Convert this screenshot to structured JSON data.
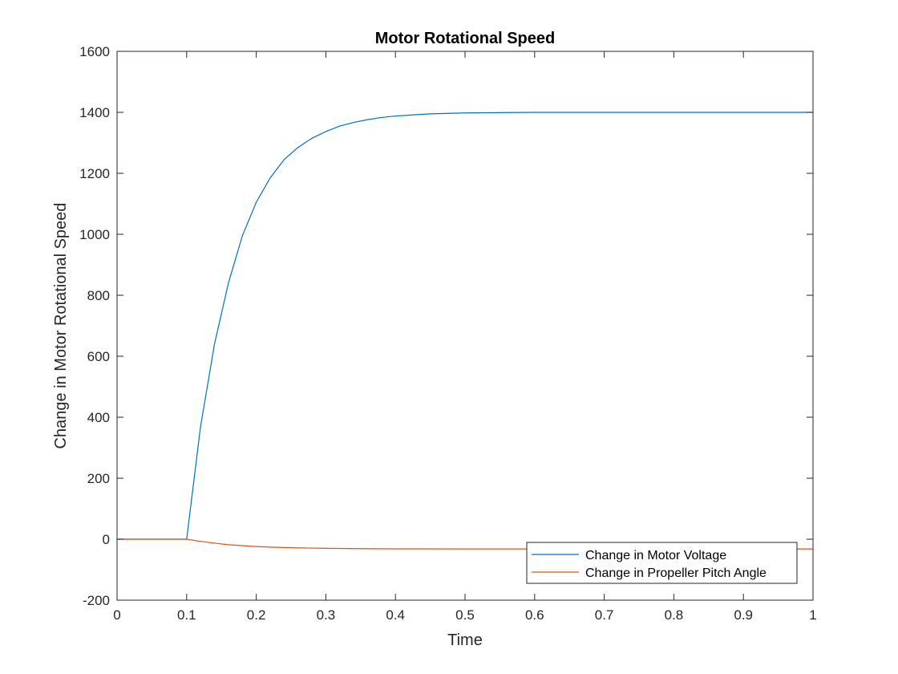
{
  "chart_data": {
    "type": "line",
    "title": "Motor Rotational Speed",
    "xlabel": "Time",
    "ylabel": "Change in Motor Rotational Speed",
    "xlim": [
      0,
      1
    ],
    "ylim": [
      -200,
      1600
    ],
    "xticks": [
      0,
      0.1,
      0.2,
      0.3,
      0.4,
      0.5,
      0.6,
      0.7,
      0.8,
      0.9,
      1
    ],
    "xtick_labels": [
      "0",
      "0.1",
      "0.2",
      "0.3",
      "0.4",
      "0.5",
      "0.6",
      "0.7",
      "0.8",
      "0.9",
      "1"
    ],
    "yticks": [
      -200,
      0,
      200,
      400,
      600,
      800,
      1000,
      1200,
      1400,
      1600
    ],
    "ytick_labels": [
      "-200",
      "0",
      "200",
      "400",
      "600",
      "800",
      "1000",
      "1200",
      "1400",
      "1600"
    ],
    "grid": false,
    "legend_position": "bottom-right",
    "series": [
      {
        "name": "Change in Motor Voltage",
        "color": "#0072BD",
        "x": [
          0,
          0.1,
          0.12,
          0.14,
          0.16,
          0.18,
          0.2,
          0.22,
          0.24,
          0.26,
          0.28,
          0.3,
          0.32,
          0.34,
          0.36,
          0.38,
          0.4,
          0.45,
          0.5,
          0.6,
          0.7,
          0.8,
          0.9,
          1.0
        ],
        "y": [
          0,
          0,
          370,
          640,
          840,
          995,
          1105,
          1185,
          1245,
          1285,
          1315,
          1337,
          1355,
          1367,
          1376,
          1383,
          1388,
          1395,
          1398,
          1400,
          1400,
          1400,
          1400,
          1400
        ]
      },
      {
        "name": "Change in Propeller Pitch Angle",
        "color": "#D95319",
        "x": [
          0,
          0.1,
          0.12,
          0.14,
          0.16,
          0.18,
          0.2,
          0.22,
          0.25,
          0.3,
          0.35,
          0.4,
          0.5,
          0.6,
          0.7,
          0.8,
          0.9,
          1.0
        ],
        "y": [
          0,
          0,
          -7,
          -13,
          -18,
          -21,
          -24,
          -26,
          -28,
          -30,
          -31,
          -31.5,
          -32,
          -32,
          -32,
          -32,
          -32,
          -32
        ]
      }
    ]
  }
}
